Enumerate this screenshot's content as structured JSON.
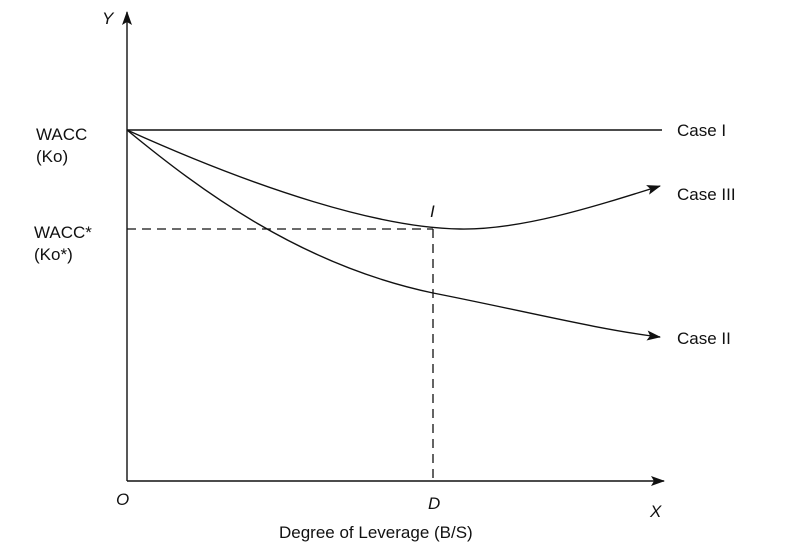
{
  "axes": {
    "y_label": "Y",
    "x_label": "X",
    "origin_label": "O",
    "x_axis_title": "Degree of Leverage (B/S)"
  },
  "y_ticks": {
    "wacc_line1": "WACC",
    "wacc_line2": "(Ko)",
    "wacc_star_line1": "WACC*",
    "wacc_star_line2": "(Ko*)"
  },
  "points": {
    "optimum_label": "I",
    "optimum_leverage_label": "D"
  },
  "curves": [
    {
      "id": "case1",
      "label": "Case I"
    },
    {
      "id": "case3",
      "label": "Case III"
    },
    {
      "id": "case2",
      "label": "Case II"
    }
  ],
  "colors": {
    "line": "#111111",
    "background": "#ffffff"
  }
}
